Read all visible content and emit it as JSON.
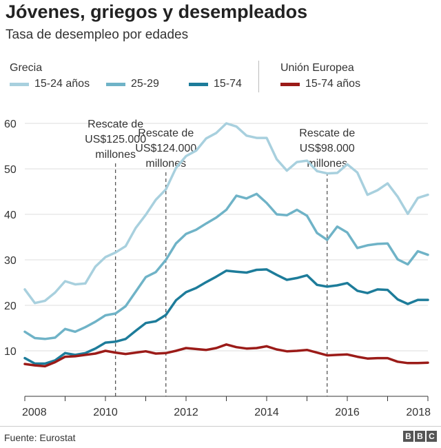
{
  "title": "Jóvenes, griegos y desempleados",
  "subtitle": "Tasa de desempleo por edades",
  "legend": {
    "group_greece": "Grecia",
    "group_eu": "Unión Europea",
    "items": [
      {
        "label": "15-24 años",
        "color": "#a8d0de"
      },
      {
        "label": "25-29",
        "color": "#6fb3c7"
      },
      {
        "label": "15-74",
        "color": "#1d7c9a"
      },
      {
        "label": "15-74 años",
        "color": "#9b1b18"
      }
    ]
  },
  "source": "Fuente: Eurostat",
  "logo": [
    "B",
    "B",
    "C"
  ],
  "chart_data": {
    "type": "line",
    "title": "Jóvenes, griegos y desempleados",
    "subtitle": "Tasa de desempleo por edades",
    "xlabel": "",
    "ylabel": "",
    "xlim": [
      2008,
      2018
    ],
    "ylim": [
      0,
      62
    ],
    "x_ticks": [
      2008,
      2010,
      2012,
      2014,
      2016,
      2018
    ],
    "x_tick_labels": [
      "2008",
      "2010",
      "2012",
      "2014",
      "2016",
      "2018"
    ],
    "y_ticks": [
      10,
      20,
      30,
      40,
      50,
      60
    ],
    "y_tick_labels": [
      "10",
      "20",
      "30",
      "40",
      "50",
      "60"
    ],
    "grid": "horizontal",
    "legend_position": "top",
    "x": [
      2008.0,
      2008.25,
      2008.5,
      2008.75,
      2009.0,
      2009.25,
      2009.5,
      2009.75,
      2010.0,
      2010.25,
      2010.5,
      2010.75,
      2011.0,
      2011.25,
      2011.5,
      2011.75,
      2012.0,
      2012.25,
      2012.5,
      2012.75,
      2013.0,
      2013.25,
      2013.5,
      2013.75,
      2014.0,
      2014.25,
      2014.5,
      2014.75,
      2015.0,
      2015.25,
      2015.5,
      2015.75,
      2016.0,
      2016.25,
      2016.5,
      2016.75,
      2017.0,
      2017.25,
      2017.5,
      2017.75,
      2018.0
    ],
    "series": [
      {
        "name": "15-24 años",
        "color": "#a8d0de",
        "values": [
          23.5,
          20.5,
          21.0,
          22.8,
          25.3,
          24.6,
          24.8,
          28.5,
          30.6,
          31.6,
          33.0,
          37.0,
          39.9,
          43.2,
          45.5,
          50.2,
          52.8,
          54.0,
          56.7,
          57.9,
          60.0,
          59.3,
          57.3,
          56.8,
          56.8,
          52.1,
          49.6,
          51.5,
          51.8,
          49.5,
          49.0,
          49.1,
          51.0,
          49.2,
          44.3,
          45.3,
          46.8,
          43.9,
          40.1,
          43.6,
          44.3
        ]
      },
      {
        "name": "25-29",
        "color": "#6fb3c7",
        "values": [
          14.2,
          12.8,
          12.6,
          12.9,
          14.8,
          14.2,
          15.2,
          16.4,
          17.8,
          18.2,
          19.8,
          23.0,
          26.2,
          27.3,
          30.0,
          33.6,
          35.7,
          36.6,
          38.0,
          39.3,
          41.0,
          44.1,
          43.5,
          44.5,
          42.5,
          40.0,
          39.8,
          41.0,
          39.7,
          35.9,
          34.4,
          37.3,
          36.0,
          32.6,
          33.2,
          33.5,
          33.6,
          30.1,
          29.0,
          31.9,
          31.1
        ]
      },
      {
        "name": "15-74",
        "color": "#1d7c9a",
        "values": [
          8.4,
          7.2,
          7.2,
          7.9,
          9.5,
          9.1,
          9.5,
          10.5,
          11.8,
          12.0,
          12.6,
          14.4,
          16.1,
          16.5,
          17.9,
          21.1,
          22.9,
          23.8,
          25.1,
          26.3,
          27.6,
          27.4,
          27.2,
          27.8,
          27.9,
          26.7,
          25.6,
          26.0,
          26.6,
          24.5,
          24.1,
          24.4,
          24.9,
          23.2,
          22.7,
          23.5,
          23.4,
          21.3,
          20.3,
          21.2,
          21.2
        ]
      },
      {
        "name": "15-74 años",
        "color": "#9b1b18",
        "values": [
          7.1,
          6.8,
          6.6,
          7.5,
          8.7,
          8.8,
          9.1,
          9.4,
          10.0,
          9.6,
          9.3,
          9.6,
          9.9,
          9.4,
          9.5,
          10.0,
          10.6,
          10.4,
          10.2,
          10.6,
          11.4,
          10.8,
          10.5,
          10.6,
          11.0,
          10.3,
          9.9,
          10.0,
          10.2,
          9.6,
          9.0,
          9.1,
          9.2,
          8.7,
          8.3,
          8.4,
          8.4,
          7.6,
          7.3,
          7.3,
          7.4
        ]
      }
    ],
    "annotations": [
      {
        "x": 2010.25,
        "lines": [
          "Rescate de",
          "US$125.000",
          "millones"
        ],
        "text_top": 45
      },
      {
        "x": 2011.5,
        "lines": [
          "Rescate de",
          "US$124.000",
          "millones"
        ],
        "text_top": 58
      },
      {
        "x": 2015.5,
        "lines": [
          "Rescate de",
          "US$98.000",
          "millones"
        ],
        "text_top": 58
      }
    ]
  }
}
